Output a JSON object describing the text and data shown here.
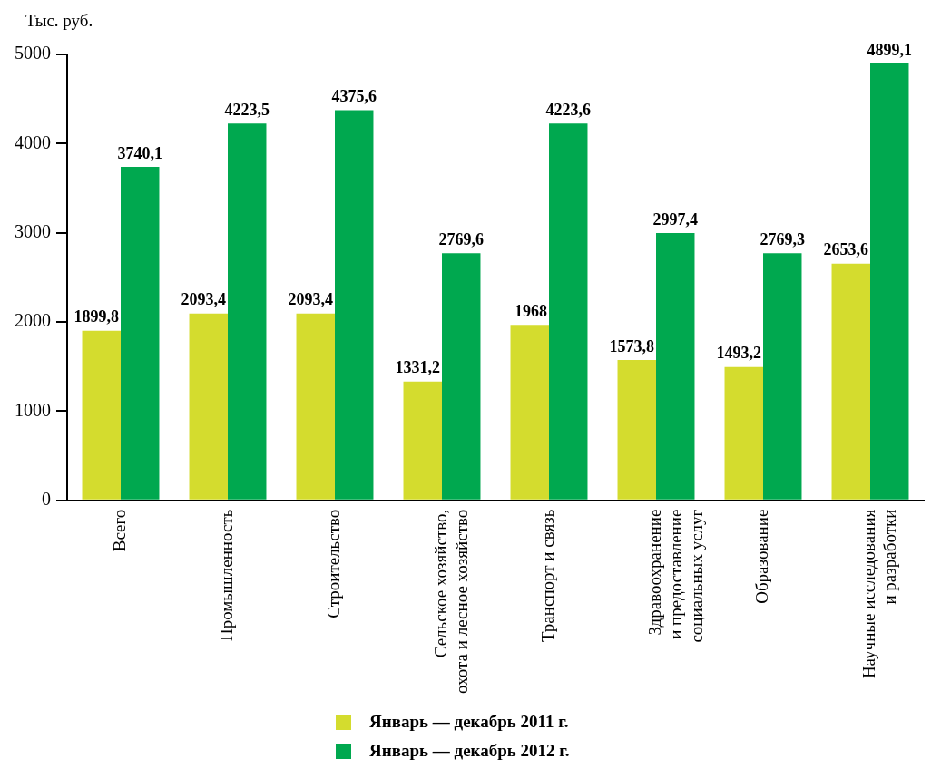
{
  "chart_data": {
    "type": "bar",
    "ylabel": "Тыс. руб.",
    "categories": [
      "Всего",
      "Промышленность",
      "Строительство",
      "Сельское хозяйство, охота и лесное хозяйство",
      "Транспорт и связь",
      "Здравоохранение и предоставление социальных услуг",
      "Образование",
      "Научные исследования и разработки"
    ],
    "series": [
      {
        "name": "Январь — декабрь 2011 г.",
        "color": "#d4dc2e",
        "values": [
          1899.8,
          2093.4,
          2093.4,
          1331.2,
          1968,
          1573.8,
          1493.2,
          2653.6
        ],
        "value_labels": [
          "1899,8",
          "2093,4",
          "2093,4",
          "1331,2",
          "1968",
          "1573,8",
          "1493,2",
          "2653,6"
        ]
      },
      {
        "name": "Январь — декабрь 2012 г.",
        "color": "#00a84f",
        "values": [
          3740.1,
          4223.5,
          4375.6,
          2769.6,
          4223.6,
          2997.4,
          2769.3,
          4899.1
        ],
        "value_labels": [
          "3740,1",
          "4223,5",
          "4375,6",
          "2769,6",
          "4223,6",
          "2997,4",
          "2769,3",
          "4899,1"
        ]
      }
    ],
    "ylim": [
      0,
      5000
    ],
    "yticks": [
      0,
      1000,
      2000,
      3000,
      4000,
      5000
    ],
    "grid": false,
    "legend": "bottom"
  }
}
